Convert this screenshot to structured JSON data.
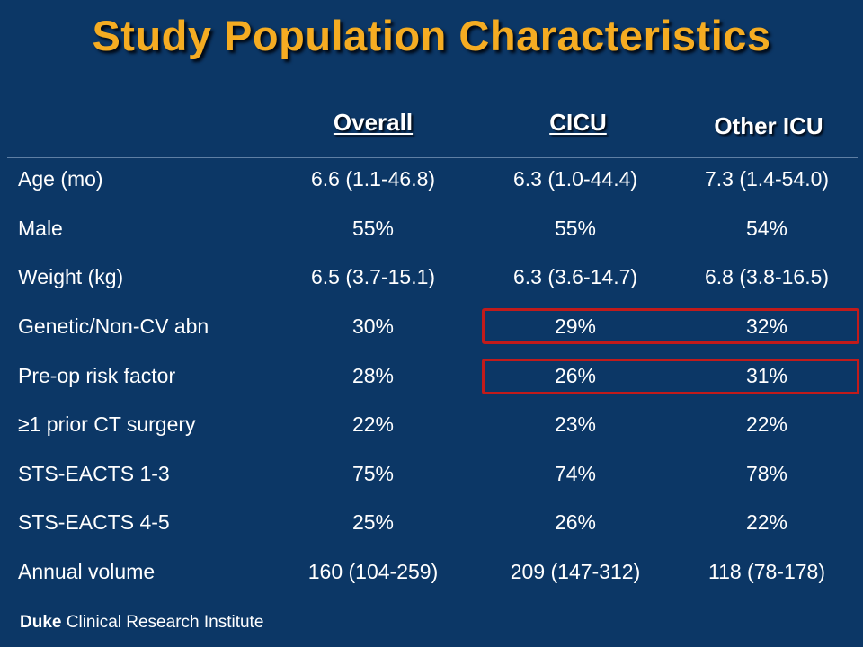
{
  "title": "Study Population Characteristics",
  "columns": {
    "overall": "Overall",
    "cicu": "CICU",
    "other": "Other ICU"
  },
  "rows": [
    {
      "label": "Age (mo)",
      "overall": "6.6 (1.1-46.8)",
      "cicu": "6.3 (1.0-44.4)",
      "other": "7.3 (1.4-54.0)"
    },
    {
      "label": "Male",
      "overall": "55%",
      "cicu": "55%",
      "other": "54%"
    },
    {
      "label": "Weight (kg)",
      "overall": "6.5 (3.7-15.1)",
      "cicu": "6.3 (3.6-14.7)",
      "other": "6.8 (3.8-16.5)"
    },
    {
      "label": "Genetic/Non-CV abn",
      "overall": "30%",
      "cicu": "29%",
      "other": "32%"
    },
    {
      "label": "Pre-op risk factor",
      "overall": "28%",
      "cicu": "26%",
      "other": "31%"
    },
    {
      "label": "≥1 prior CT surgery",
      "overall": "22%",
      "cicu": "23%",
      "other": "22%"
    },
    {
      "label": "STS-EACTS 1-3",
      "overall": "75%",
      "cicu": "74%",
      "other": "78%"
    },
    {
      "label": "STS-EACTS 4-5",
      "overall": "25%",
      "cicu": "26%",
      "other": "22%"
    },
    {
      "label": "Annual volume",
      "overall": "160 (104-259)",
      "cicu": "209 (147-312)",
      "other": "118 (78-178)"
    }
  ],
  "highlight_color": "#c21b1b",
  "title_color": "#f5ac22",
  "background_color": "#0c3766",
  "footer": {
    "brand": "Duke",
    "text": "Clinical Research Institute"
  }
}
